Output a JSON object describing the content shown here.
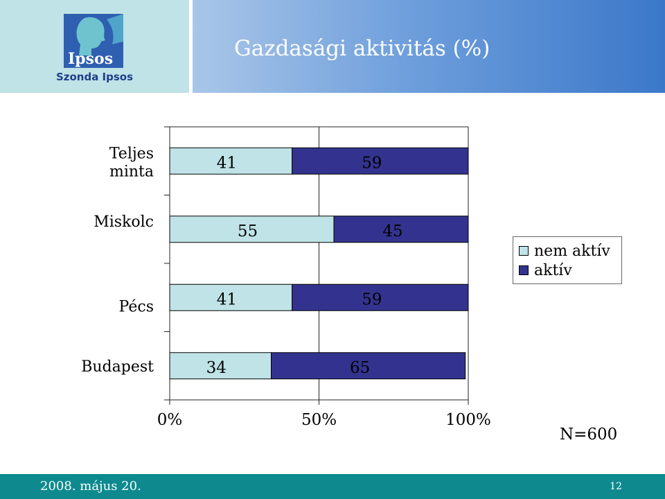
{
  "header": {
    "title": "Gazdasági aktivitás (%)",
    "logo_text": "Ipsos",
    "logo_subtext": "Szonda Ipsos"
  },
  "chart_data": {
    "type": "bar",
    "orientation": "horizontal",
    "stacked": "percent",
    "categories": [
      "Teljes minta",
      "Miskolc",
      "Pécs",
      "Budapest"
    ],
    "series": [
      {
        "name": "nem aktív",
        "values": [
          41,
          55,
          41,
          34
        ],
        "color": "#bfe3e6"
      },
      {
        "name": "aktív",
        "values": [
          59,
          45,
          59,
          65
        ],
        "color": "#33338f"
      }
    ],
    "xticks": [
      "0%",
      "50%",
      "100%"
    ],
    "xlim": [
      0,
      100
    ],
    "grid": true,
    "legend": "right"
  },
  "note": "N=600",
  "footer": {
    "date": "2008. május 20.",
    "page": "12"
  }
}
